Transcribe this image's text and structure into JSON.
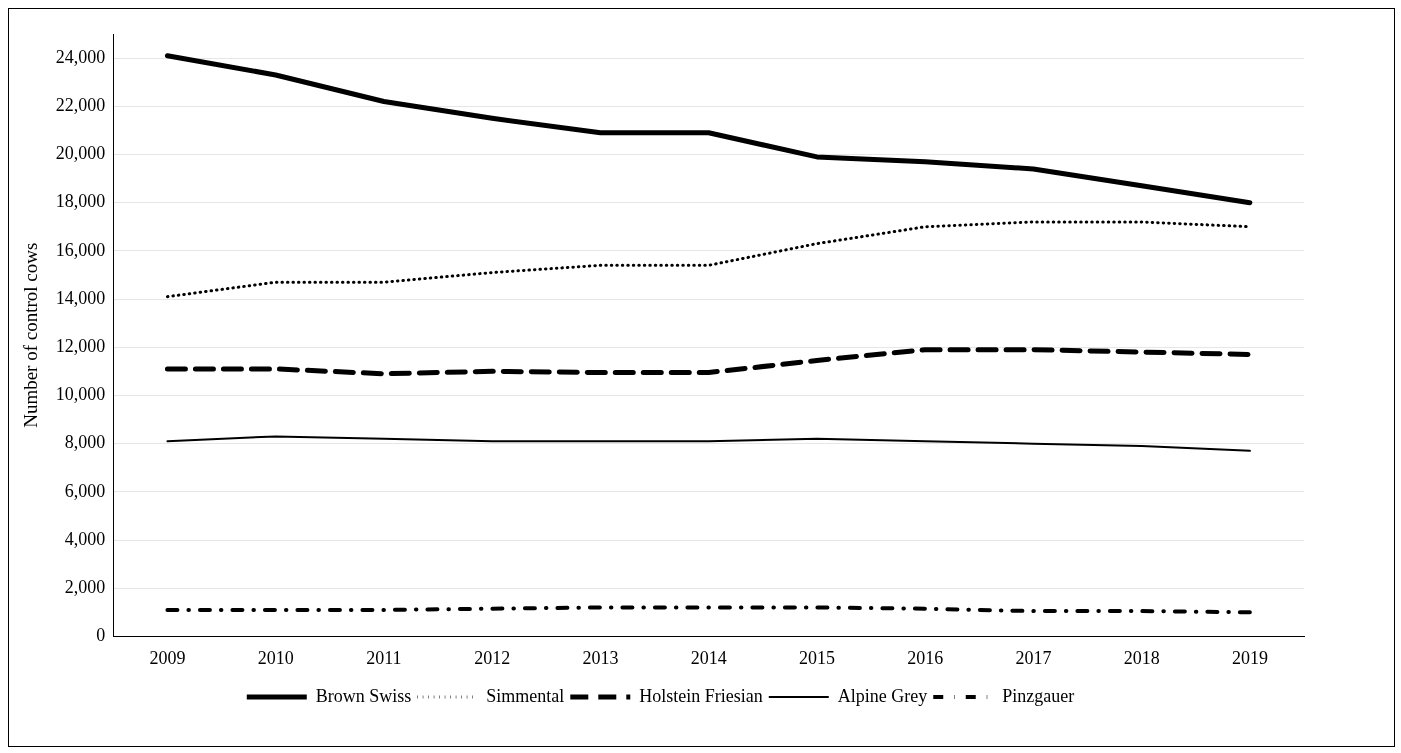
{
  "chart_data": {
    "type": "line",
    "ylabel": "Number of control cows",
    "categories": [
      "2009",
      "2010",
      "2011",
      "2012",
      "2013",
      "2014",
      "2015",
      "2016",
      "2017",
      "2018",
      "2019"
    ],
    "series": [
      {
        "name": "Brown Swiss",
        "color": "#000000",
        "line_style": "solid",
        "values": [
          24100,
          23300,
          22200,
          21500,
          20900,
          20900,
          19900,
          19700,
          19400,
          18700,
          18000
        ]
      },
      {
        "name": "Simmental",
        "color": "#000000",
        "line_style": "dotted",
        "values": [
          14100,
          14700,
          14700,
          15100,
          15400,
          15400,
          16300,
          17000,
          17200,
          17200,
          17000
        ]
      },
      {
        "name": "Holstein Friesian",
        "color": "#000000",
        "line_style": "dashed",
        "values": [
          11100,
          11100,
          10900,
          11000,
          10950,
          10950,
          11450,
          11900,
          11900,
          11800,
          11700
        ]
      },
      {
        "name": "Alpine Grey",
        "color": "#000000",
        "line_style": "solid",
        "values": [
          8100,
          8300,
          8200,
          8100,
          8100,
          8100,
          8200,
          8100,
          8000,
          7900,
          7700
        ]
      },
      {
        "name": "Pinzgauer",
        "color": "#000000",
        "line_style": "dashed",
        "values": [
          1100,
          1100,
          1100,
          1150,
          1200,
          1200,
          1200,
          1150,
          1050,
          1050,
          1000
        ]
      }
    ],
    "ylim": [
      0,
      25000
    ],
    "yticks": [
      0,
      {
        "value": 2000,
        "label": "2,000"
      },
      {
        "value": 4000,
        "label": "4,000"
      },
      {
        "value": 6000,
        "label": "6,000"
      },
      {
        "value": 8000,
        "label": "8,000"
      },
      {
        "value": 10000,
        "label": "10,000"
      },
      {
        "value": 12000,
        "label": "12,000"
      },
      {
        "value": 14000,
        "label": "14,000"
      },
      {
        "value": 16000,
        "label": "16,000"
      },
      {
        "value": 18000,
        "label": "18,000"
      },
      {
        "value": 20000,
        "label": "20,000"
      },
      {
        "value": 22000,
        "label": "22,000"
      },
      {
        "value": 24000,
        "label": "24,000"
      }
    ],
    "grid": "y",
    "legend": "bottom",
    "marker": "none"
  }
}
